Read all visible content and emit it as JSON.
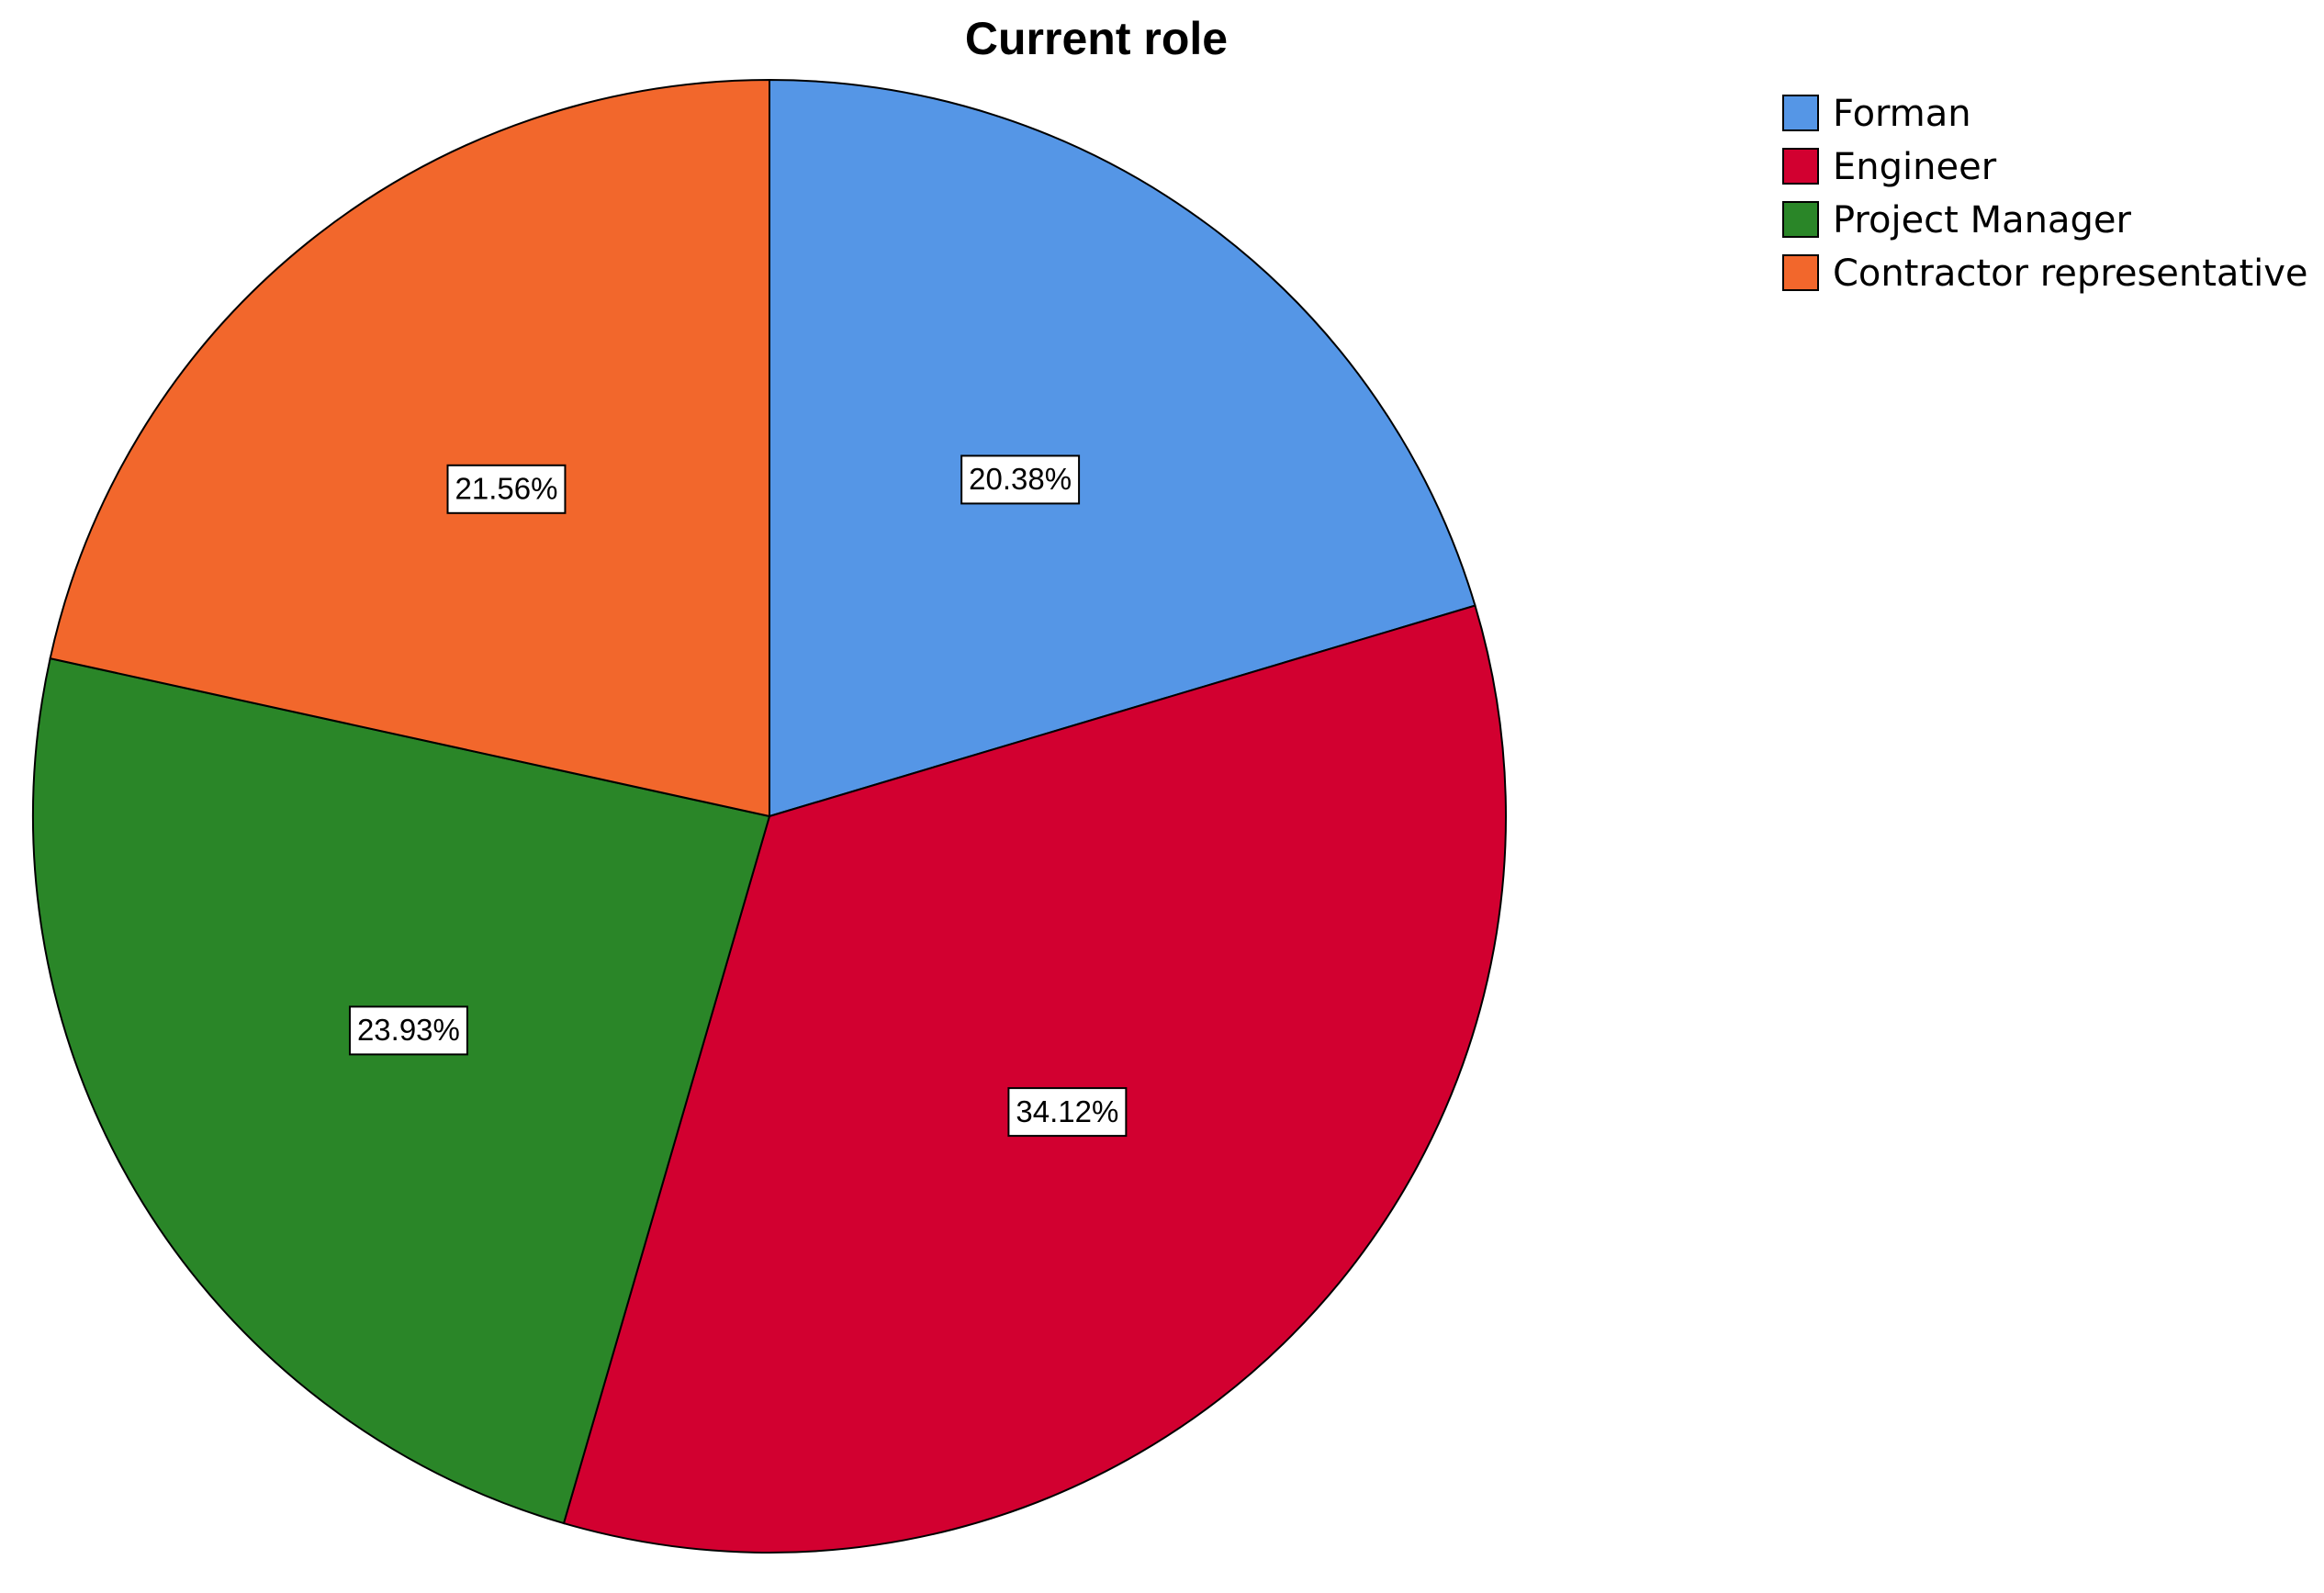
{
  "chart_data": {
    "type": "pie",
    "title": "Current role",
    "categories": [
      "Forman",
      "Engineer",
      "Project Manager",
      "Contractor representative"
    ],
    "values": [
      20.38,
      34.12,
      23.93,
      21.56
    ],
    "value_labels": [
      "20.38%",
      "34.12%",
      "23.93%",
      "21.56%"
    ],
    "colors": [
      "#5596e6",
      "#d20030",
      "#2a8628",
      "#f2672c"
    ]
  }
}
